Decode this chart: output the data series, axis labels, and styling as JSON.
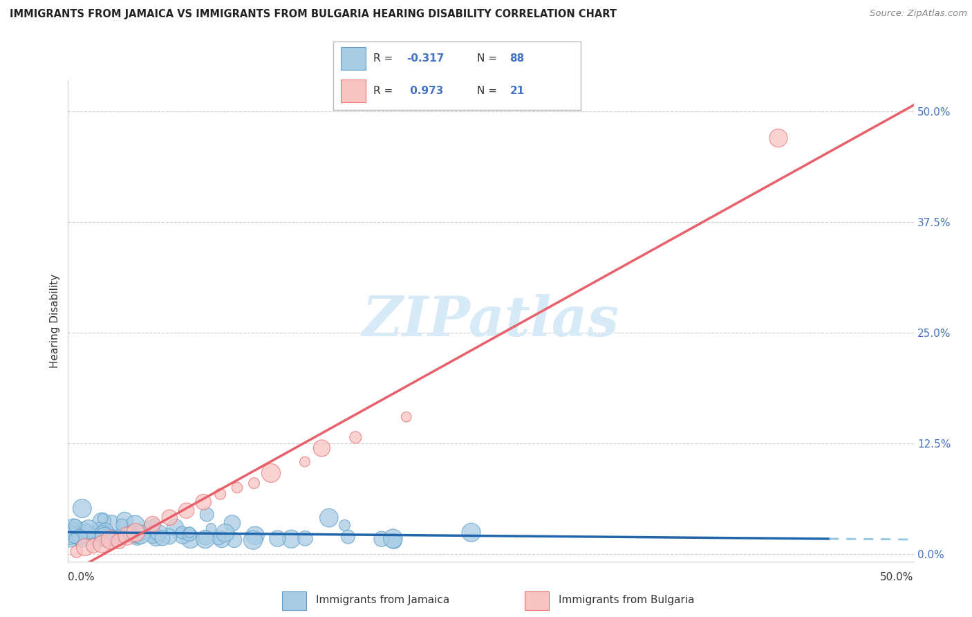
{
  "title": "IMMIGRANTS FROM JAMAICA VS IMMIGRANTS FROM BULGARIA HEARING DISABILITY CORRELATION CHART",
  "source": "Source: ZipAtlas.com",
  "ylabel": "Hearing Disability",
  "ylabel_right_ticks": [
    "0.0%",
    "12.5%",
    "25.0%",
    "37.5%",
    "50.0%"
  ],
  "ylabel_right_values": [
    0.0,
    0.125,
    0.25,
    0.375,
    0.5
  ],
  "xmin": 0.0,
  "xmax": 0.5,
  "ymin": -0.008,
  "ymax": 0.535,
  "jamaica_color": "#a8cce4",
  "jamaica_edge_color": "#5b9dc9",
  "bulgaria_color": "#f8c3c3",
  "bulgaria_edge_color": "#e87070",
  "jamaica_line_color": "#2166ac",
  "jamaica_line_dashed_color": "#92c5de",
  "bulgaria_line_color": "#e8606a",
  "R_jamaica": -0.317,
  "N_jamaica": 88,
  "R_bulgaria": 0.973,
  "N_bulgaria": 21,
  "watermark": "ZIPatlas",
  "watermark_color": "#d6eaf8",
  "legend_label_jamaica": "Immigrants from Jamaica",
  "legend_label_bulgaria": "Immigrants from Bulgaria",
  "legend_r_color": "#4472c4",
  "legend_n_color": "#4472c4"
}
